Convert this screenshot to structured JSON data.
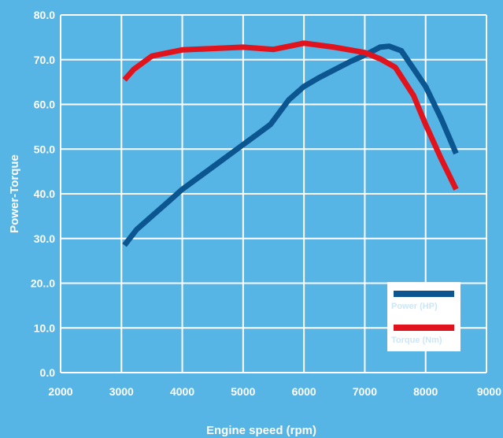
{
  "chart_data": {
    "type": "line",
    "title": "",
    "xlabel": "Engine speed (rpm)",
    "ylabel": "Power-Torque",
    "xlim": [
      2000,
      9000
    ],
    "ylim": [
      0,
      80
    ],
    "x_ticks": [
      "2000",
      "3000",
      "4000",
      "5000",
      "6000",
      "7000",
      "8000",
      "9000"
    ],
    "y_ticks": [
      "0.0",
      "10.0",
      "20..0",
      "30.0",
      "40.0",
      "50.0",
      "60.0",
      "70.0",
      "80.0"
    ],
    "grid": true,
    "legend_position": "bottom-right",
    "series": [
      {
        "name": "Power (HP)",
        "color": "#0b5591",
        "points": [
          [
            3050,
            28.5
          ],
          [
            3250,
            32
          ],
          [
            3500,
            35
          ],
          [
            3750,
            38
          ],
          [
            4000,
            41
          ],
          [
            4500,
            46
          ],
          [
            5000,
            51
          ],
          [
            5250,
            53.5
          ],
          [
            5450,
            55.5
          ],
          [
            5750,
            61
          ],
          [
            6000,
            64
          ],
          [
            6250,
            66
          ],
          [
            6750,
            69.5
          ],
          [
            7000,
            71
          ],
          [
            7250,
            72.8
          ],
          [
            7400,
            73
          ],
          [
            7600,
            72
          ],
          [
            7800,
            68
          ],
          [
            8000,
            64
          ],
          [
            8250,
            57
          ],
          [
            8500,
            49
          ]
        ]
      },
      {
        "name": "Torque (Nm)",
        "color": "#e1141e",
        "points": [
          [
            3050,
            65.5
          ],
          [
            3200,
            67.8
          ],
          [
            3500,
            70.8
          ],
          [
            3750,
            71.5
          ],
          [
            4000,
            72.2
          ],
          [
            4500,
            72.5
          ],
          [
            5000,
            72.8
          ],
          [
            5500,
            72.3
          ],
          [
            6000,
            73.7
          ],
          [
            6500,
            72.8
          ],
          [
            7000,
            71.6
          ],
          [
            7250,
            70.2
          ],
          [
            7500,
            68.3
          ],
          [
            7800,
            62
          ],
          [
            8000,
            55.5
          ],
          [
            8250,
            48
          ],
          [
            8500,
            41
          ]
        ]
      }
    ]
  }
}
